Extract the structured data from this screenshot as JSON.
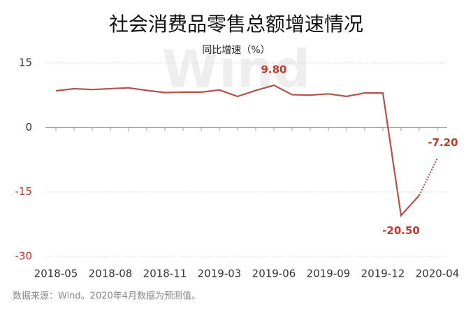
{
  "chart_data": {
    "type": "line",
    "title": "社会消费品零售总额增速情况",
    "subtitle": "同比增速（%）",
    "watermark": "Wind",
    "footnote": "数据来源：Wind。2020年4月数据为预测值。",
    "categories": [
      "2018-05",
      null,
      null,
      "2018-08",
      null,
      null,
      "2018-11",
      null,
      null,
      "2019-03",
      null,
      null,
      "2019-06",
      null,
      null,
      "2019-09",
      null,
      null,
      "2019-12",
      null,
      null,
      "2020-04"
    ],
    "series": [
      {
        "color": "#b5504b",
        "style": "solid",
        "values": [
          8.5,
          9.0,
          8.8,
          9.0,
          9.2,
          8.6,
          8.1,
          8.2,
          8.2,
          8.7,
          7.2,
          8.6,
          9.8,
          7.6,
          7.5,
          7.8,
          7.2,
          8.0,
          8.0,
          -20.5,
          -15.8,
          null
        ],
        "value_labels": [
          null,
          null,
          null,
          null,
          null,
          null,
          null,
          null,
          null,
          null,
          null,
          null,
          "9.80",
          null,
          null,
          null,
          null,
          null,
          null,
          "-20.50",
          null,
          null
        ]
      },
      {
        "color": "#b5504b",
        "style": "dotted",
        "values": [
          null,
          null,
          null,
          null,
          null,
          null,
          null,
          null,
          null,
          null,
          null,
          null,
          null,
          null,
          null,
          null,
          null,
          null,
          null,
          null,
          -15.8,
          -7.2
        ],
        "value_labels": [
          null,
          null,
          null,
          null,
          null,
          null,
          null,
          null,
          null,
          null,
          null,
          null,
          null,
          null,
          null,
          null,
          null,
          null,
          null,
          null,
          null,
          "-7.20"
        ]
      }
    ],
    "ylim": [
      -30,
      15
    ],
    "yticks": [
      -30,
      -15,
      0,
      15
    ],
    "grid": true
  }
}
